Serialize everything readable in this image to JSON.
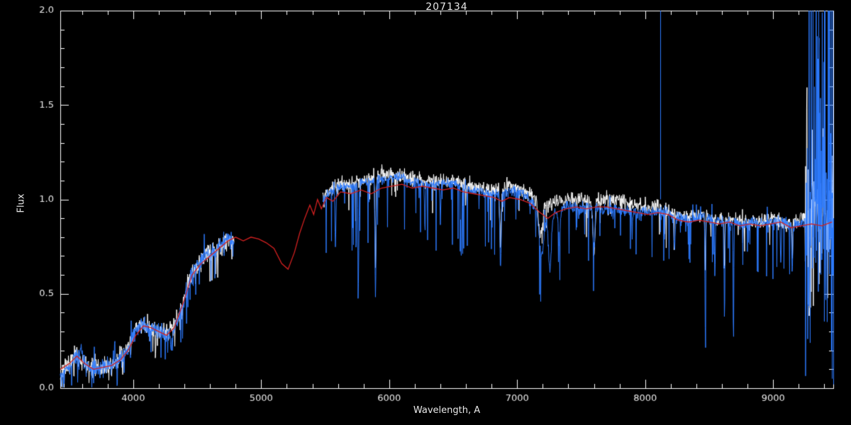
{
  "chart_data": {
    "type": "line",
    "title": "207134",
    "xlabel": "Wavelength, A",
    "ylabel": "Flux",
    "xlim": [
      3430,
      9470
    ],
    "ylim": [
      0,
      2
    ],
    "xticks": [
      4000,
      5000,
      6000,
      7000,
      8000,
      9000
    ],
    "xtick_labels": [
      "4000",
      "5000",
      "6000",
      "7000",
      "8000",
      "9000"
    ],
    "yticks": [
      0,
      0.5,
      1,
      1.5,
      2
    ],
    "ytick_labels": [
      "0.0",
      "0.5",
      "1.0",
      "1.5",
      "2.0"
    ],
    "x_minor_step": 200,
    "y_minor_step": 0.1,
    "grid": false,
    "legend_position": null,
    "background": "#000000",
    "axis_color": "#ffffff",
    "series": [
      {
        "name": "white-spectrum",
        "color": "#ffffff",
        "style": "noisy",
        "seed": 7,
        "segments": [
          [
            3430,
            4790
          ],
          [
            5480,
            9470
          ]
        ],
        "continuum": [
          [
            3430,
            0.07
          ],
          [
            3550,
            0.18
          ],
          [
            3650,
            0.11
          ],
          [
            3750,
            0.11
          ],
          [
            3850,
            0.13
          ],
          [
            3950,
            0.2
          ],
          [
            4050,
            0.35
          ],
          [
            4150,
            0.32
          ],
          [
            4250,
            0.29
          ],
          [
            4350,
            0.37
          ],
          [
            4450,
            0.6
          ],
          [
            4550,
            0.69
          ],
          [
            4650,
            0.74
          ],
          [
            4750,
            0.79
          ],
          [
            4790,
            0.78
          ],
          [
            5480,
            1.02
          ],
          [
            5600,
            1.08
          ],
          [
            5750,
            1.09
          ],
          [
            5900,
            1.12
          ],
          [
            6050,
            1.13
          ],
          [
            6200,
            1.11
          ],
          [
            6350,
            1.1
          ],
          [
            6500,
            1.1
          ],
          [
            6650,
            1.07
          ],
          [
            6800,
            1.05
          ],
          [
            6950,
            1.07
          ],
          [
            7100,
            1.03
          ],
          [
            7200,
            0.97
          ],
          [
            7300,
            0.99
          ],
          [
            7400,
            1.0
          ],
          [
            7500,
            1.0
          ],
          [
            7600,
            0.99
          ],
          [
            7700,
            1.0
          ],
          [
            7800,
            0.99
          ],
          [
            7900,
            0.97
          ],
          [
            8000,
            0.96
          ],
          [
            8100,
            0.96
          ],
          [
            8200,
            0.93
          ],
          [
            8300,
            0.91
          ],
          [
            8400,
            0.92
          ],
          [
            8500,
            0.9
          ],
          [
            8600,
            0.89
          ],
          [
            8700,
            0.89
          ],
          [
            8800,
            0.88
          ],
          [
            8900,
            0.88
          ],
          [
            9000,
            0.89
          ],
          [
            9100,
            0.87
          ],
          [
            9200,
            0.89
          ],
          [
            9300,
            0.95
          ],
          [
            9470,
            0.96
          ]
        ],
        "features": [
          [
            5893,
            6,
            0.4
          ],
          [
            6870,
            8,
            0.3
          ],
          [
            7180,
            20,
            0.18
          ],
          [
            7600,
            12,
            0.28
          ],
          [
            8470,
            4,
            0.3
          ],
          [
            8620,
            4,
            0.3
          ],
          [
            9150,
            5,
            0.2
          ]
        ],
        "noise_zones": [
          {
            "from": 3430,
            "to": 4790,
            "amp": 0.05,
            "spike_prob": 0.1,
            "spike_depth": 0.15,
            "up_prob": 0.02,
            "up_amp": 0.08
          },
          {
            "from": 5480,
            "to": 9250,
            "amp": 0.04,
            "spike_prob": 0.05,
            "spike_depth": 0.2,
            "up_prob": 0.01,
            "up_amp": 0.06
          },
          {
            "from": 9250,
            "to": 9470,
            "amp": 0.22,
            "spike_prob": 0.2,
            "spike_depth": 0.5,
            "up_prob": 0.18,
            "up_amp": 1.0
          }
        ],
        "spikes": []
      },
      {
        "name": "blue-spectrum",
        "color": "#2d7bff",
        "style": "noisy",
        "seed": 42,
        "segments": [
          [
            3430,
            4790
          ],
          [
            5480,
            9470
          ]
        ],
        "continuum": [
          [
            3430,
            0.06
          ],
          [
            3470,
            0.1
          ],
          [
            3510,
            0.12
          ],
          [
            3550,
            0.17
          ],
          [
            3590,
            0.19
          ],
          [
            3630,
            0.13
          ],
          [
            3680,
            0.09
          ],
          [
            3730,
            0.1
          ],
          [
            3780,
            0.12
          ],
          [
            3830,
            0.12
          ],
          [
            3880,
            0.14
          ],
          [
            3930,
            0.16
          ],
          [
            3970,
            0.22
          ],
          [
            4010,
            0.28
          ],
          [
            4060,
            0.34
          ],
          [
            4110,
            0.33
          ],
          [
            4160,
            0.31
          ],
          [
            4210,
            0.3
          ],
          [
            4260,
            0.28
          ],
          [
            4310,
            0.3
          ],
          [
            4360,
            0.38
          ],
          [
            4410,
            0.5
          ],
          [
            4460,
            0.62
          ],
          [
            4510,
            0.66
          ],
          [
            4560,
            0.7
          ],
          [
            4610,
            0.72
          ],
          [
            4660,
            0.75
          ],
          [
            4710,
            0.78
          ],
          [
            4760,
            0.8
          ],
          [
            4790,
            0.78
          ],
          [
            5480,
            1.0
          ],
          [
            5530,
            1.03
          ],
          [
            5600,
            1.06
          ],
          [
            5700,
            1.07
          ],
          [
            5800,
            1.09
          ],
          [
            5900,
            1.1
          ],
          [
            6000,
            1.11
          ],
          [
            6100,
            1.12
          ],
          [
            6200,
            1.09
          ],
          [
            6300,
            1.08
          ],
          [
            6400,
            1.08
          ],
          [
            6500,
            1.09
          ],
          [
            6600,
            1.06
          ],
          [
            6700,
            1.04
          ],
          [
            6800,
            1.03
          ],
          [
            6900,
            1.04
          ],
          [
            7000,
            1.05
          ],
          [
            7100,
            1.0
          ],
          [
            7200,
            0.92
          ],
          [
            7280,
            0.92
          ],
          [
            7360,
            0.96
          ],
          [
            7450,
            0.96
          ],
          [
            7550,
            0.95
          ],
          [
            7650,
            0.95
          ],
          [
            7750,
            0.95
          ],
          [
            7850,
            0.94
          ],
          [
            7950,
            0.93
          ],
          [
            8050,
            0.93
          ],
          [
            8150,
            0.94
          ],
          [
            8250,
            0.9
          ],
          [
            8350,
            0.89
          ],
          [
            8450,
            0.91
          ],
          [
            8550,
            0.89
          ],
          [
            8650,
            0.88
          ],
          [
            8750,
            0.87
          ],
          [
            8850,
            0.88
          ],
          [
            8950,
            0.87
          ],
          [
            9050,
            0.89
          ],
          [
            9150,
            0.86
          ],
          [
            9250,
            0.88
          ],
          [
            9350,
            0.95
          ],
          [
            9470,
            0.95
          ]
        ],
        "features": [
          [
            4300,
            14,
            0.18
          ],
          [
            5580,
            5,
            0.3
          ],
          [
            5760,
            5,
            0.45
          ],
          [
            5893,
            6,
            0.55
          ],
          [
            6280,
            5,
            0.25
          ],
          [
            6400,
            5,
            0.18
          ],
          [
            6563,
            6,
            0.35
          ],
          [
            6870,
            8,
            0.4
          ],
          [
            7190,
            24,
            0.25
          ],
          [
            7255,
            16,
            0.3
          ],
          [
            7330,
            9,
            0.2
          ],
          [
            7600,
            9,
            0.22
          ],
          [
            8230,
            7,
            0.18
          ],
          [
            8470,
            4,
            0.68
          ],
          [
            8545,
            4,
            0.35
          ],
          [
            8620,
            4,
            0.6
          ],
          [
            8690,
            4,
            0.66
          ],
          [
            9060,
            5,
            0.25
          ],
          [
            9150,
            5,
            0.3
          ]
        ],
        "noise_zones": [
          {
            "from": 3430,
            "to": 4790,
            "amp": 0.04,
            "spike_prob": 0.12,
            "spike_depth": 0.15,
            "up_prob": 0.03,
            "up_amp": 0.1
          },
          {
            "from": 5480,
            "to": 6900,
            "amp": 0.025,
            "spike_prob": 0.1,
            "spike_depth": 0.35,
            "up_prob": 0.01,
            "up_amp": 0.08
          },
          {
            "from": 6900,
            "to": 9250,
            "amp": 0.03,
            "spike_prob": 0.09,
            "spike_depth": 0.3,
            "up_prob": 0.01,
            "up_amp": 0.1
          },
          {
            "from": 9250,
            "to": 9470,
            "amp": 0.3,
            "spike_prob": 0.3,
            "spike_depth": 0.7,
            "up_prob": 0.25,
            "up_amp": 1.2
          }
        ],
        "spikes": [
          {
            "wl": 8118,
            "from": 1.0,
            "to": 2.0
          },
          {
            "wl": 9312,
            "from": 0.8,
            "to": 2.0
          },
          {
            "wl": 9352,
            "from": 0.85,
            "to": 2.0
          },
          {
            "wl": 9398,
            "from": 0.7,
            "to": 2.0
          },
          {
            "wl": 9430,
            "from": 0.75,
            "to": 2.0
          },
          {
            "wl": 9452,
            "from": 0.8,
            "to": 2.0
          },
          {
            "wl": 9465,
            "from": 0.6,
            "to": 2.0
          },
          {
            "wl": 9458,
            "from": 0.85,
            "to": 0.05
          },
          {
            "wl": 9468,
            "from": 0.9,
            "to": 0.02
          }
        ]
      },
      {
        "name": "red-template",
        "color": "#d22020",
        "style": "smooth",
        "points": [
          [
            3430,
            0.1
          ],
          [
            3500,
            0.13
          ],
          [
            3560,
            0.17
          ],
          [
            3620,
            0.13
          ],
          [
            3690,
            0.1
          ],
          [
            3760,
            0.11
          ],
          [
            3830,
            0.12
          ],
          [
            3900,
            0.15
          ],
          [
            3960,
            0.2
          ],
          [
            4020,
            0.28
          ],
          [
            4080,
            0.33
          ],
          [
            4140,
            0.32
          ],
          [
            4200,
            0.3
          ],
          [
            4260,
            0.28
          ],
          [
            4320,
            0.32
          ],
          [
            4390,
            0.45
          ],
          [
            4460,
            0.6
          ],
          [
            4530,
            0.66
          ],
          [
            4600,
            0.7
          ],
          [
            4670,
            0.74
          ],
          [
            4740,
            0.78
          ],
          [
            4800,
            0.8
          ],
          [
            4860,
            0.78
          ],
          [
            4920,
            0.8
          ],
          [
            4980,
            0.79
          ],
          [
            5040,
            0.77
          ],
          [
            5100,
            0.74
          ],
          [
            5160,
            0.66
          ],
          [
            5210,
            0.63
          ],
          [
            5260,
            0.72
          ],
          [
            5300,
            0.82
          ],
          [
            5340,
            0.9
          ],
          [
            5380,
            0.97
          ],
          [
            5410,
            0.92
          ],
          [
            5440,
            1.0
          ],
          [
            5470,
            0.95
          ],
          [
            5510,
            1.01
          ],
          [
            5560,
            0.99
          ],
          [
            5620,
            1.04
          ],
          [
            5700,
            1.03
          ],
          [
            5780,
            1.05
          ],
          [
            5860,
            1.03
          ],
          [
            5940,
            1.06
          ],
          [
            6020,
            1.07
          ],
          [
            6100,
            1.08
          ],
          [
            6180,
            1.06
          ],
          [
            6260,
            1.07
          ],
          [
            6340,
            1.06
          ],
          [
            6420,
            1.05
          ],
          [
            6500,
            1.06
          ],
          [
            6580,
            1.04
          ],
          [
            6660,
            1.03
          ],
          [
            6740,
            1.02
          ],
          [
            6820,
            1.01
          ],
          [
            6880,
            0.99
          ],
          [
            6940,
            1.01
          ],
          [
            7020,
            1.0
          ],
          [
            7100,
            0.98
          ],
          [
            7180,
            0.93
          ],
          [
            7240,
            0.9
          ],
          [
            7300,
            0.93
          ],
          [
            7380,
            0.95
          ],
          [
            7460,
            0.96
          ],
          [
            7540,
            0.95
          ],
          [
            7620,
            0.96
          ],
          [
            7700,
            0.96
          ],
          [
            7780,
            0.95
          ],
          [
            7860,
            0.94
          ],
          [
            7940,
            0.93
          ],
          [
            8020,
            0.92
          ],
          [
            8100,
            0.93
          ],
          [
            8180,
            0.92
          ],
          [
            8260,
            0.89
          ],
          [
            8340,
            0.88
          ],
          [
            8420,
            0.89
          ],
          [
            8500,
            0.88
          ],
          [
            8580,
            0.87
          ],
          [
            8660,
            0.88
          ],
          [
            8740,
            0.86
          ],
          [
            8820,
            0.87
          ],
          [
            8900,
            0.86
          ],
          [
            8980,
            0.87
          ],
          [
            9060,
            0.88
          ],
          [
            9140,
            0.85
          ],
          [
            9220,
            0.86
          ],
          [
            9300,
            0.87
          ],
          [
            9380,
            0.86
          ],
          [
            9460,
            0.88
          ]
        ]
      }
    ]
  }
}
